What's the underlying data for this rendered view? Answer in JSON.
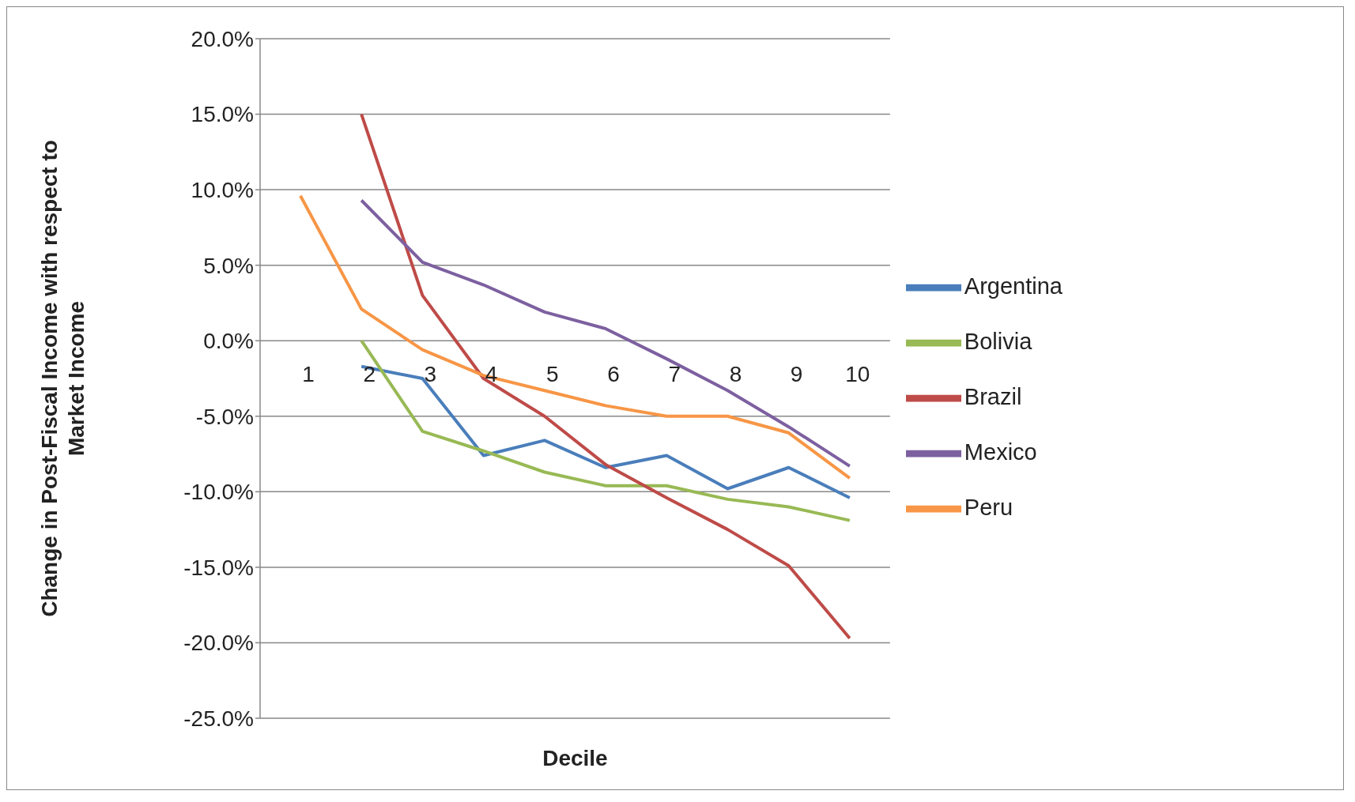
{
  "chart_data": {
    "type": "line",
    "xlabel": "Decile",
    "ylabel": "Change in Post-Fiscal Income with respect to Market Income",
    "categories": [
      "1",
      "2",
      "3",
      "4",
      "5",
      "6",
      "7",
      "8",
      "9",
      "10"
    ],
    "series": [
      {
        "name": "Argentina",
        "color": "#4a7ebb",
        "values": [
          null,
          -1.7,
          -2.5,
          -7.6,
          -6.6,
          -8.4,
          -7.6,
          -9.8,
          -8.4,
          -10.4
        ]
      },
      {
        "name": "Bolivia",
        "color": "#98b954",
        "values": [
          null,
          0,
          -6.0,
          -7.3,
          -8.7,
          -9.6,
          -9.6,
          -10.5,
          -11.0,
          -11.9
        ]
      },
      {
        "name": "Brazil",
        "color": "#be4b48",
        "values": [
          null,
          15,
          3.0,
          -2.5,
          -5.0,
          -8.2,
          -10.4,
          -12.5,
          -14.9,
          -19.7
        ]
      },
      {
        "name": "Mexico",
        "color": "#7d60a0",
        "values": [
          null,
          9.3,
          5.2,
          3.7,
          1.9,
          0.8,
          -1.2,
          -3.3,
          -5.7,
          -8.3
        ]
      },
      {
        "name": "Peru",
        "color": "#f79646",
        "values": [
          9.6,
          2.1,
          -0.6,
          -2.3,
          -3.3,
          -4.3,
          -5.0,
          -5.0,
          -6.1,
          -9.1
        ]
      }
    ],
    "ylim": [
      -25,
      20
    ],
    "yticks": [
      {
        "value": -25,
        "label": "-25.0%"
      },
      {
        "value": -20,
        "label": "-20.0%"
      },
      {
        "value": -15,
        "label": "-15.0%"
      },
      {
        "value": -10,
        "label": "-10.0%"
      },
      {
        "value": -5,
        "label": "-5.0%"
      },
      {
        "value": 0,
        "label": "0.0%"
      },
      {
        "value": 5,
        "label": "5.0%"
      },
      {
        "value": 10,
        "label": "10.0%"
      },
      {
        "value": 15,
        "label": "15.0%"
      },
      {
        "value": 20,
        "label": "20.0%"
      }
    ],
    "grid": "y",
    "legend": "right",
    "marker": "none",
    "line_style": "solid"
  }
}
